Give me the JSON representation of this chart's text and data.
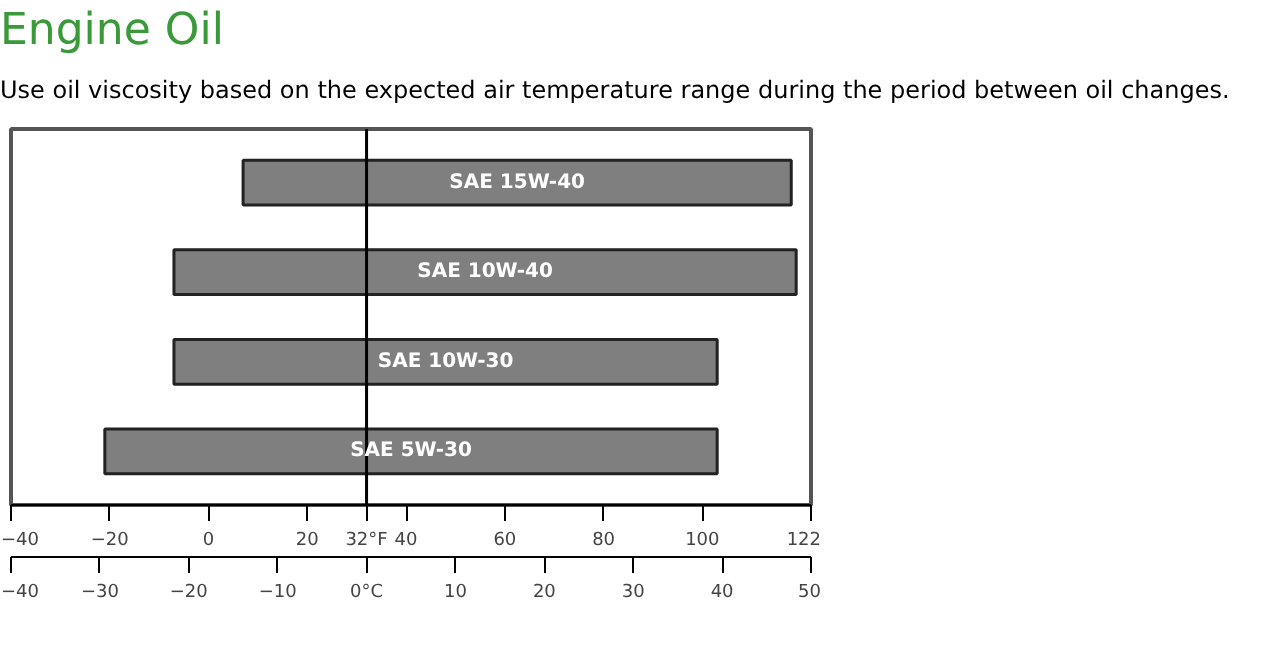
{
  "chart_data": {
    "type": "bar",
    "orientation": "horizontal",
    "title": "Engine Oil",
    "subtitle": "Use oil viscosity based on the expected air temperature range during the period between oil changes.",
    "categories": [
      "SAE 15W-40",
      "SAE 10W-40",
      "SAE 10W-30",
      "SAE 5W-30"
    ],
    "base": [
      7,
      -7,
      -7,
      -21
    ],
    "values": [
      111,
      126,
      110,
      124
    ],
    "color": "#7f7f7f",
    "xlim": [
      -40,
      122
    ],
    "xticks": [
      -40,
      -20,
      0,
      20,
      {
        "value": 32,
        "label": "32°F"
      },
      40,
      60,
      80,
      100,
      122
    ],
    "x2lim": [
      -40,
      50
    ],
    "x2ticks": [
      -40,
      -30,
      -20,
      -10,
      {
        "value": 0,
        "label": "0°C"
      },
      10,
      20,
      30,
      40,
      50
    ],
    "ref_lines": [
      {
        "axis": "x",
        "value": 32,
        "color": "#000000"
      }
    ],
    "grid": false
  }
}
